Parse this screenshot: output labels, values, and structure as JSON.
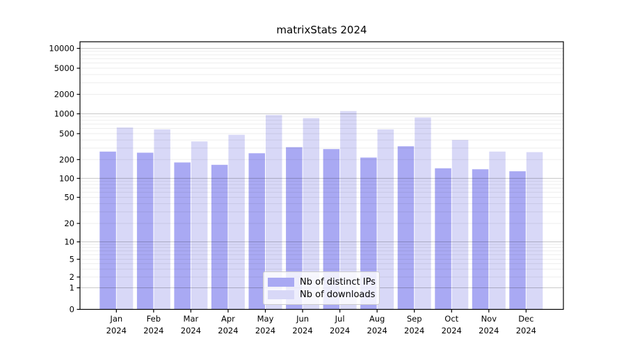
{
  "chart_data": {
    "type": "bar",
    "title": "matrixStats 2024",
    "categories": [
      "Jan",
      "Feb",
      "Mar",
      "Apr",
      "May",
      "Jun",
      "Jul",
      "Aug",
      "Sep",
      "Oct",
      "Nov",
      "Dec"
    ],
    "year_label": "2024",
    "series": [
      {
        "name": "Nb of distinct IPs",
        "values": [
          265,
          255,
          180,
          165,
          250,
          310,
          290,
          215,
          320,
          145,
          140,
          130
        ]
      },
      {
        "name": "Nb of downloads",
        "values": [
          620,
          580,
          380,
          480,
          960,
          860,
          1100,
          580,
          880,
          400,
          265,
          260
        ]
      }
    ],
    "y_axis": {
      "scale": "log-with-zero",
      "tick_labels": [
        "0",
        "1",
        "2",
        "5",
        "10",
        "20",
        "50",
        "100",
        "200",
        "500",
        "1000",
        "2000",
        "5000",
        "10000"
      ],
      "range_top": 10000
    },
    "xlabel": "",
    "ylabel": "",
    "grid": true,
    "legend_position": "lower center"
  },
  "colors": {
    "bar_distinct_ips": "#a9a9f3",
    "bar_downloads": "#d8d8f7",
    "axis": "#000000",
    "grid_major": "rgba(0,0,0,0.21)",
    "grid_minor": "rgba(0,0,0,0.07)",
    "legend_border": "#cccccc"
  }
}
